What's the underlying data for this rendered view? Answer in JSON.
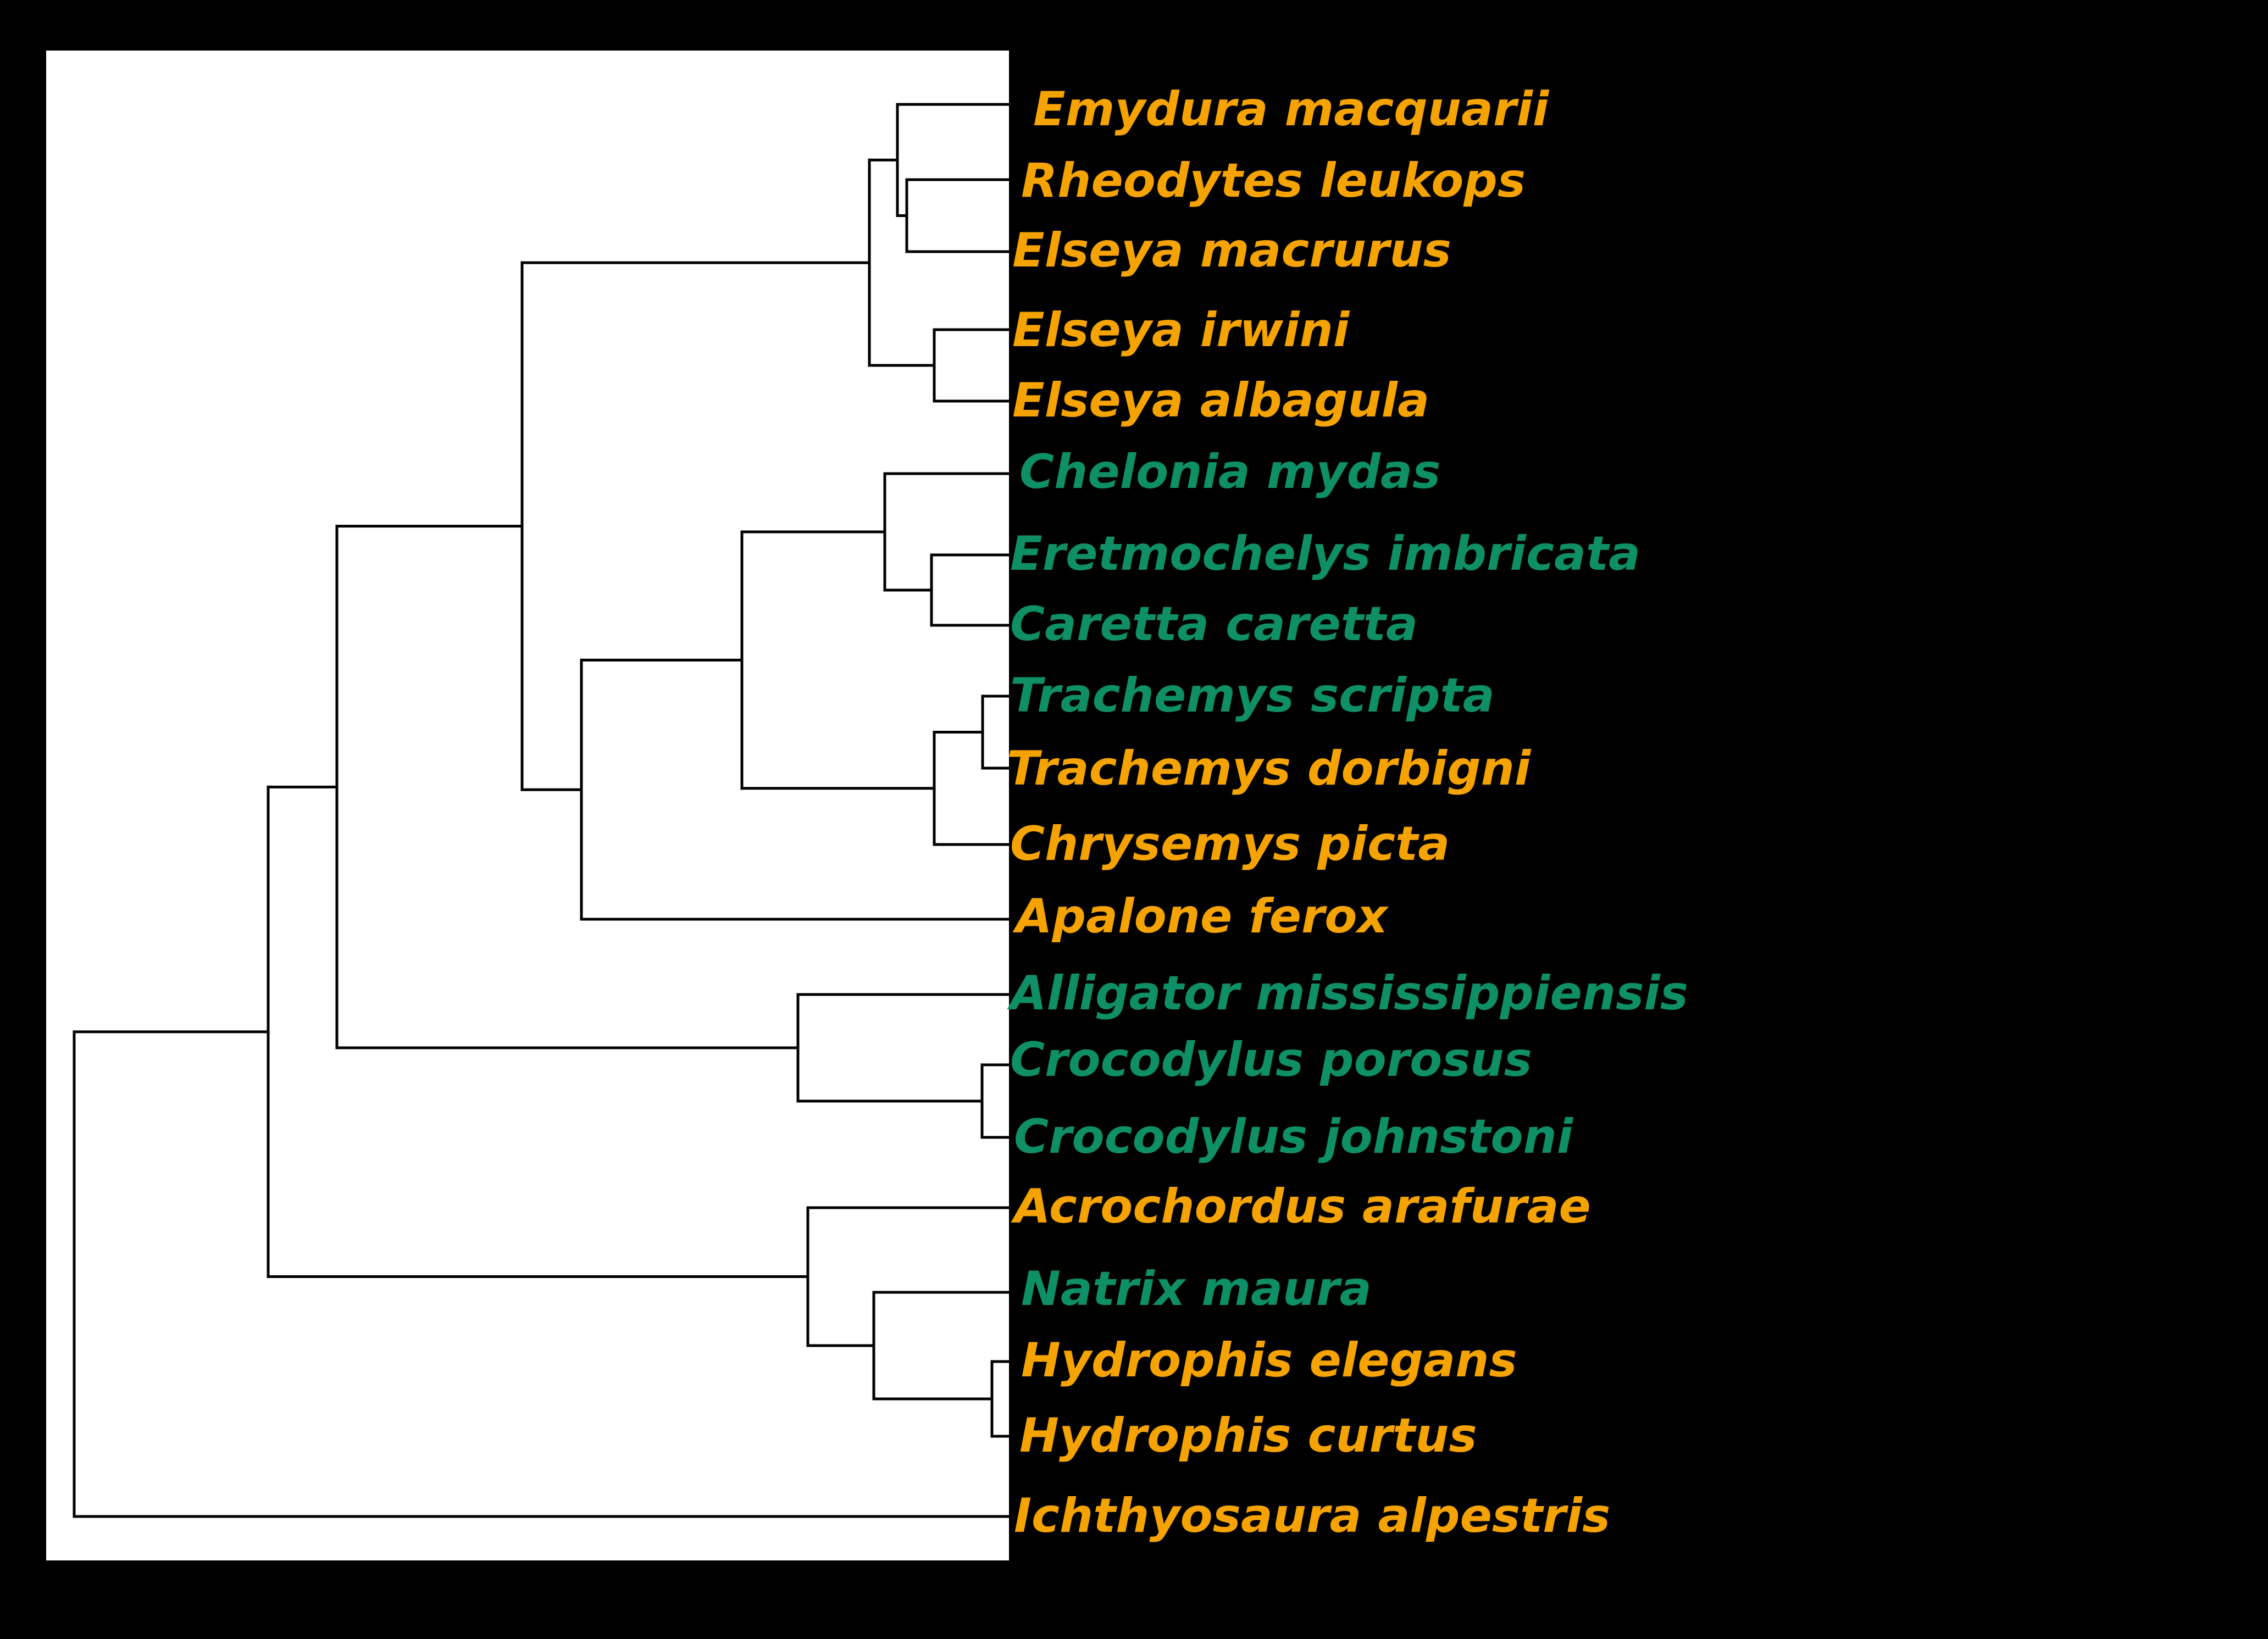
{
  "colors": {
    "background": "#000000",
    "tree_panel": "#ffffff",
    "branch": "#000000",
    "orange_label": "#f5a300",
    "green_label": "#0f8f66"
  },
  "taxa": [
    {
      "name": "Emydura macquarii",
      "color": "orange"
    },
    {
      "name": "Rheodytes leukops",
      "color": "orange"
    },
    {
      "name": "Elseya macrurus",
      "color": "orange"
    },
    {
      "name": "Elseya irwini",
      "color": "orange"
    },
    {
      "name": "Elseya albagula",
      "color": "orange"
    },
    {
      "name": "Chelonia mydas",
      "color": "green"
    },
    {
      "name": "Eretmochelys imbricata",
      "color": "green"
    },
    {
      "name": "Caretta caretta",
      "color": "green"
    },
    {
      "name": "Trachemys scripta",
      "color": "green"
    },
    {
      "name": "Trachemys dorbigni",
      "color": "orange"
    },
    {
      "name": "Chrysemys picta",
      "color": "orange"
    },
    {
      "name": "Apalone ferox",
      "color": "orange"
    },
    {
      "name": "Alligator mississippiensis",
      "color": "green"
    },
    {
      "name": "Crocodylus porosus",
      "color": "green"
    },
    {
      "name": "Crocodylus johnstoni",
      "color": "green"
    },
    {
      "name": "Acrochordus arafurae",
      "color": "orange"
    },
    {
      "name": "Natrix maura",
      "color": "green"
    },
    {
      "name": "Hydrophis elegans",
      "color": "orange"
    },
    {
      "name": "Hydrophis curtus",
      "color": "orange"
    },
    {
      "name": "Ichthyosaura alpestris",
      "color": "orange"
    }
  ]
}
